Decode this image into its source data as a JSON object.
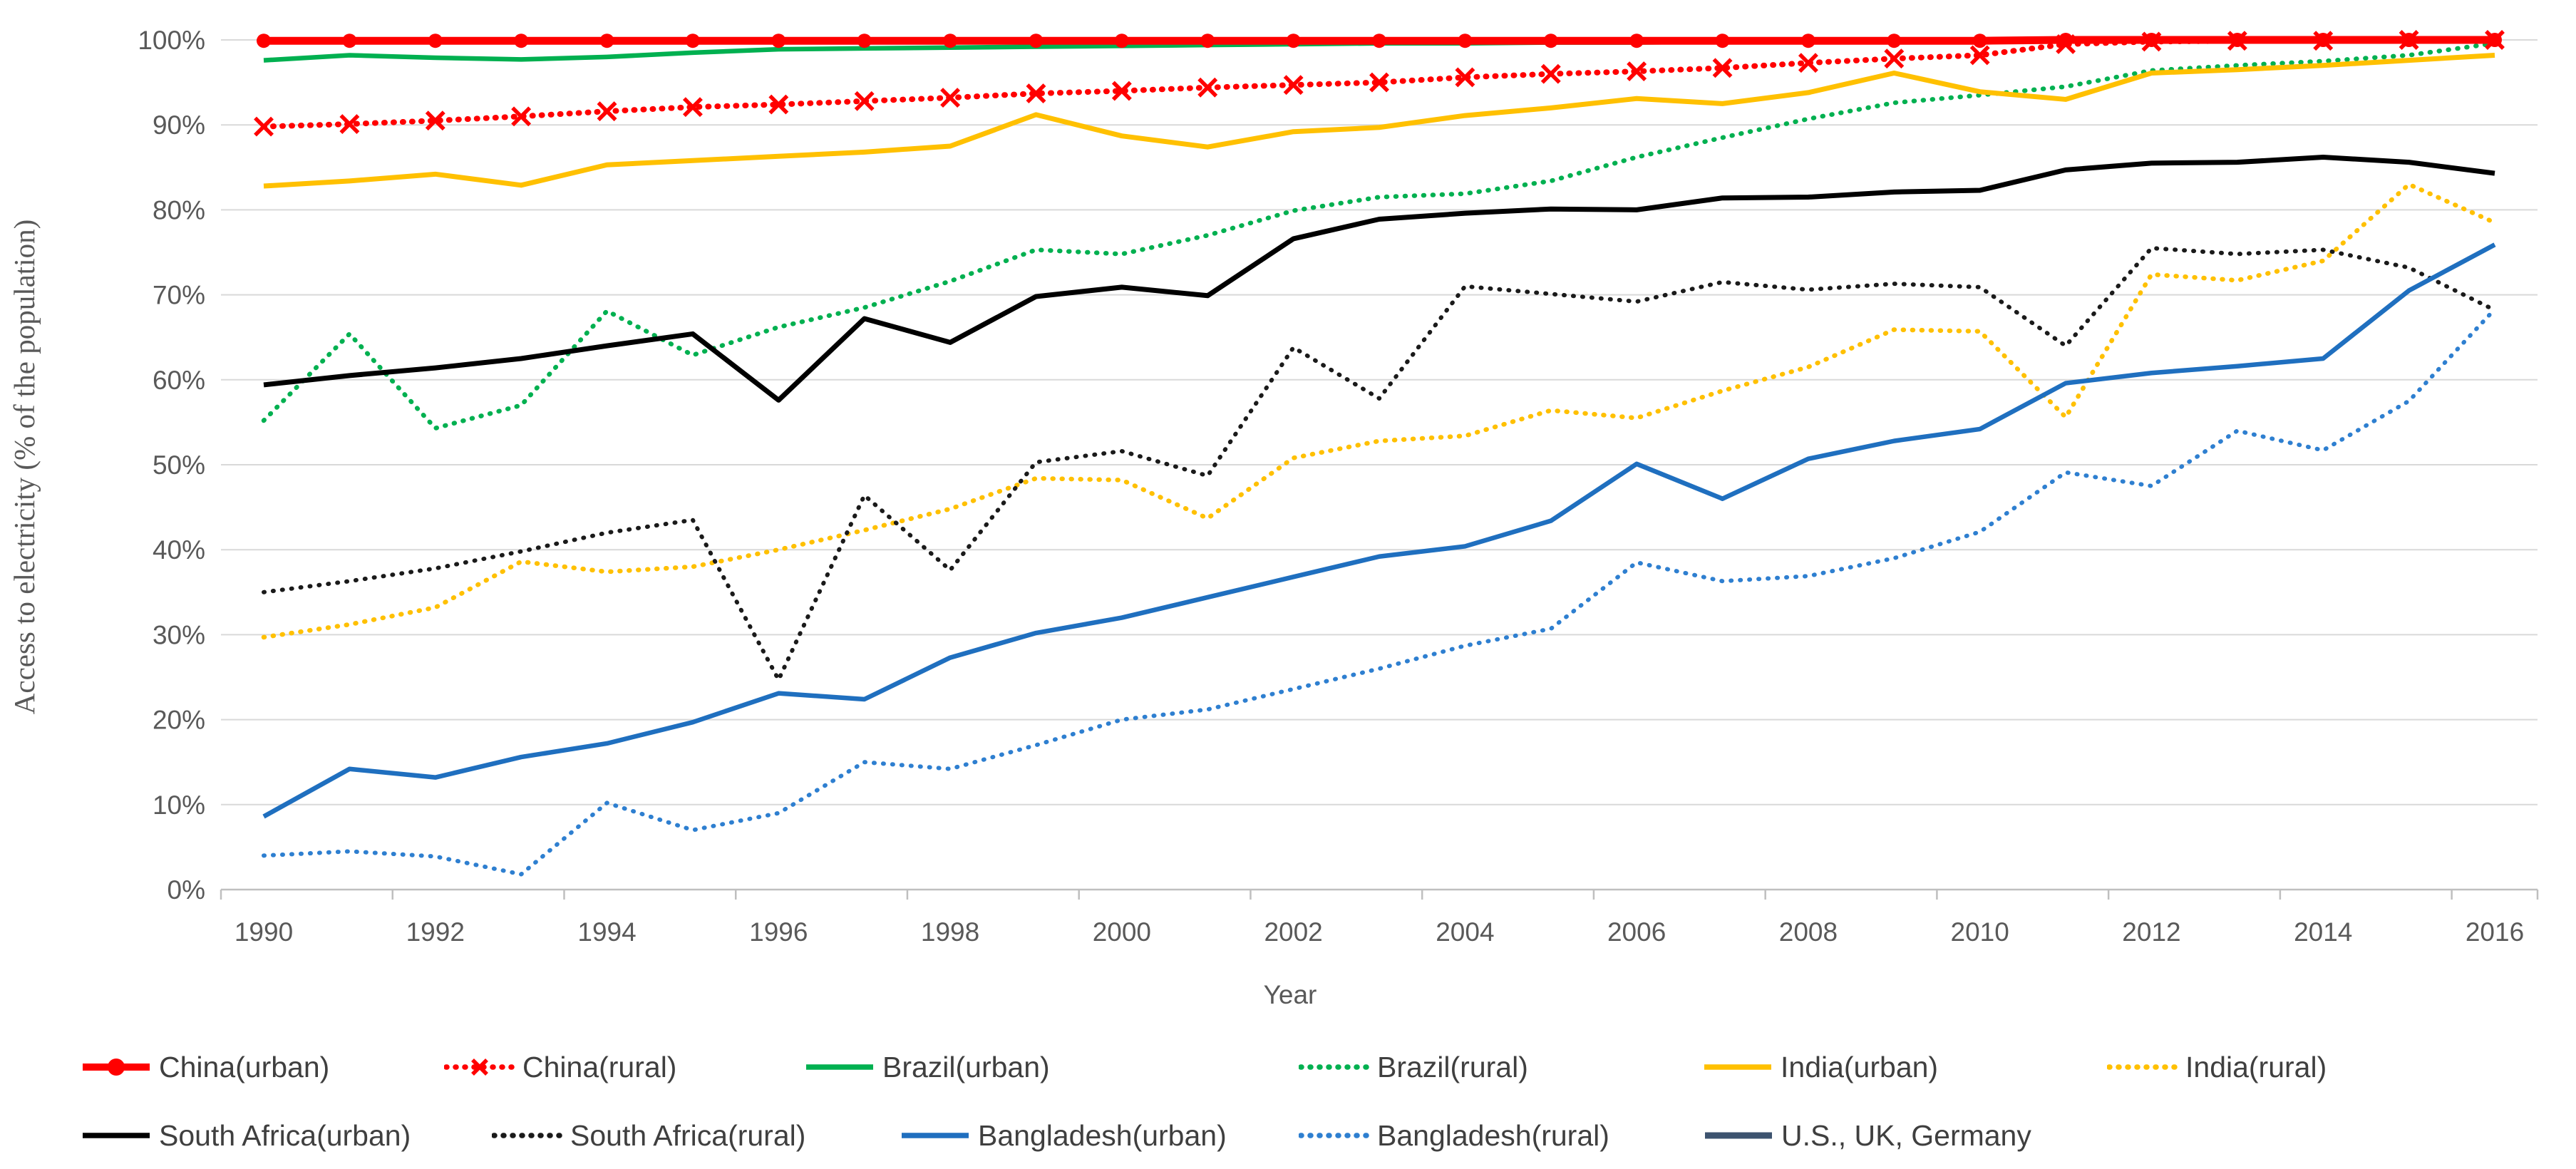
{
  "page": {
    "background": "#FFFFFF"
  },
  "axes": {
    "y_title": "Access to electricity (% of the population)",
    "x_title": "Year",
    "y_tick_labels": [
      "0%",
      "10%",
      "20%",
      "30%",
      "40%",
      "50%",
      "60%",
      "70%",
      "80%",
      "90%",
      "100%"
    ],
    "x_tick_labels": [
      "1990",
      "1992",
      "1994",
      "1996",
      "1998",
      "2000",
      "2002",
      "2004",
      "2006",
      "2008",
      "2010",
      "2012",
      "2014",
      "2016"
    ],
    "tick_color": "#595959",
    "gridline_color": "#D9D9D9",
    "axis_line_color": "#BFBFBF"
  },
  "chart_data": {
    "type": "line",
    "title": "",
    "xlabel": "Year",
    "ylabel": "Access to electricity (% of the population)",
    "ylim": [
      0,
      100
    ],
    "y_tick_step": 10,
    "y_tick_format": "percent",
    "x_tick_step": 2,
    "grid": "horizontal",
    "legend_position": "bottom",
    "x": [
      1990,
      1991,
      1992,
      1993,
      1994,
      1995,
      1996,
      1997,
      1998,
      1999,
      2000,
      2001,
      2002,
      2003,
      2004,
      2005,
      2006,
      2007,
      2008,
      2009,
      2010,
      2011,
      2012,
      2013,
      2014,
      2015,
      2016
    ],
    "series": [
      {
        "name": "China(urban)",
        "color": "#FF0000",
        "line_style": "solid",
        "marker": "circle",
        "values": [
          99.9,
          99.9,
          99.9,
          99.9,
          99.9,
          99.9,
          99.9,
          99.9,
          99.9,
          99.9,
          99.9,
          99.9,
          99.9,
          99.9,
          99.9,
          99.9,
          99.9,
          99.9,
          99.9,
          99.9,
          99.9,
          100,
          100,
          100,
          100,
          100,
          100
        ]
      },
      {
        "name": "China(rural)",
        "color": "#FF0000",
        "line_style": "dotted",
        "marker": "x",
        "values": [
          89.8,
          90.1,
          90.5,
          91.0,
          91.6,
          92.1,
          92.4,
          92.8,
          93.2,
          93.7,
          94.0,
          94.4,
          94.7,
          95.0,
          95.6,
          96.0,
          96.3,
          96.7,
          97.3,
          97.8,
          98.2,
          99.5,
          99.8,
          99.9,
          99.9,
          100,
          100
        ]
      },
      {
        "name": "Brazil(urban)",
        "color": "#00B050",
        "line_style": "solid",
        "marker": "none",
        "values": [
          97.6,
          98.2,
          97.9,
          97.7,
          98.0,
          98.5,
          98.9,
          99.0,
          99.1,
          99.2,
          99.3,
          99.4,
          99.5,
          99.6,
          99.6,
          99.7,
          99.7,
          99.8,
          99.8,
          99.9,
          99.9,
          99.9,
          99.9,
          99.9,
          99.9,
          100,
          100
        ]
      },
      {
        "name": "Brazil(rural)",
        "color": "#00B050",
        "line_style": "dotted",
        "marker": "none",
        "values": [
          55.2,
          65.4,
          54.3,
          57.0,
          68.1,
          62.9,
          66.2,
          68.5,
          71.6,
          75.3,
          74.8,
          77.0,
          79.9,
          81.5,
          81.9,
          83.4,
          86.2,
          88.5,
          90.7,
          92.6,
          93.5,
          94.5,
          96.4,
          97.0,
          97.5,
          98.2,
          99.6
        ]
      },
      {
        "name": "India(urban)",
        "color": "#FFC000",
        "line_style": "solid",
        "marker": "none",
        "values": [
          82.8,
          83.4,
          84.2,
          82.9,
          85.3,
          85.8,
          86.3,
          86.8,
          87.5,
          91.2,
          88.7,
          87.4,
          89.2,
          89.7,
          91.1,
          92.0,
          93.1,
          92.5,
          93.8,
          96.1,
          93.9,
          93.0,
          96.1,
          96.5,
          97.0,
          97.6,
          98.2
        ]
      },
      {
        "name": "India(rural)",
        "color": "#FFC000",
        "line_style": "dotted",
        "marker": "none",
        "values": [
          29.7,
          31.2,
          33.2,
          38.6,
          37.4,
          38.0,
          40.0,
          42.3,
          44.8,
          48.4,
          48.2,
          43.7,
          50.8,
          52.8,
          53.4,
          56.4,
          55.5,
          58.7,
          61.5,
          65.9,
          65.7,
          55.6,
          72.4,
          71.7,
          74.0,
          83.0,
          78.5
        ]
      },
      {
        "name": "South Africa(urban)",
        "color": "#000000",
        "line_style": "solid",
        "marker": "none",
        "values": [
          59.4,
          60.5,
          61.4,
          62.5,
          64.0,
          65.4,
          57.6,
          67.2,
          64.4,
          69.8,
          70.9,
          69.9,
          76.6,
          78.9,
          79.6,
          80.1,
          80.0,
          81.4,
          81.5,
          82.1,
          82.3,
          84.7,
          85.5,
          85.6,
          86.2,
          85.6,
          84.3
        ]
      },
      {
        "name": "South Africa(rural)",
        "color": "#1A1A1A",
        "line_style": "dotted",
        "marker": "none",
        "values": [
          35.0,
          36.3,
          37.8,
          39.8,
          42.0,
          43.5,
          24.7,
          46.4,
          37.6,
          50.3,
          51.6,
          48.7,
          63.8,
          57.8,
          71.0,
          70.1,
          69.2,
          71.5,
          70.6,
          71.3,
          70.9,
          64.0,
          75.5,
          74.8,
          75.3,
          73.2,
          68.2
        ]
      },
      {
        "name": "Bangladesh(urban)",
        "color": "#1F6FBF",
        "line_style": "solid",
        "marker": "none",
        "values": [
          8.6,
          14.2,
          13.2,
          15.6,
          17.2,
          19.7,
          23.1,
          22.4,
          27.3,
          30.2,
          32.0,
          34.4,
          36.8,
          39.2,
          40.4,
          43.4,
          50.1,
          46.0,
          50.7,
          52.8,
          54.2,
          59.6,
          60.8,
          61.6,
          62.5,
          70.5,
          75.9
        ]
      },
      {
        "name": "Bangladesh(rural)",
        "color": "#2E7FD0",
        "line_style": "dotted",
        "marker": "none",
        "values": [
          4.0,
          4.5,
          3.9,
          1.8,
          10.2,
          7.0,
          9.0,
          15.0,
          14.2,
          17.0,
          20.0,
          21.2,
          23.6,
          26.0,
          28.7,
          30.7,
          38.5,
          36.3,
          36.9,
          39.0,
          42.1,
          49.1,
          47.5,
          54.0,
          51.7,
          57.5,
          68.3
        ]
      },
      {
        "name": "U.S., UK, Germany",
        "color": "#3D536F",
        "line_style": "solid",
        "marker": "none",
        "values": [
          100,
          100,
          100,
          100,
          100,
          100,
          100,
          100,
          100,
          100,
          100,
          100,
          100,
          100,
          100,
          100,
          100,
          100,
          100,
          100,
          100,
          100,
          100,
          100,
          100,
          100,
          100
        ]
      }
    ]
  },
  "legend": {
    "rows": [
      [
        0,
        1,
        2,
        3,
        4,
        5
      ],
      [
        6,
        7,
        8,
        9,
        10
      ]
    ]
  }
}
